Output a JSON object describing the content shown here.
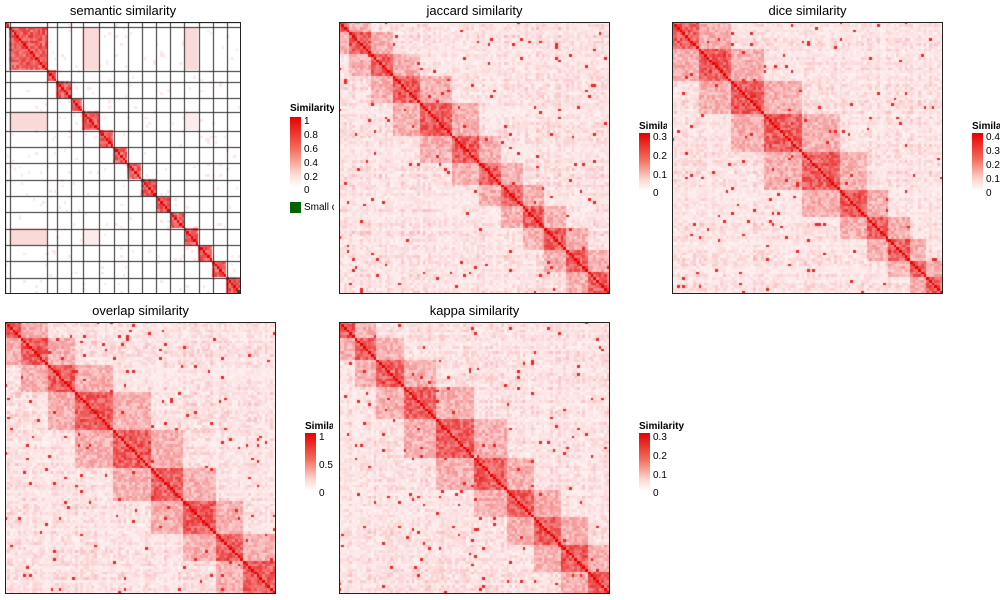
{
  "colors": {
    "low": "#ffffff",
    "high": "#e60000",
    "grid": "#2b2b2b",
    "small_block": "#006400"
  },
  "chart_data": [
    {
      "type": "heatmap",
      "title": "semantic similarity",
      "legend": {
        "title": "Similarity",
        "ticks": [
          "1",
          "0.8",
          "0.6",
          "0.4",
          "0.2",
          "0"
        ],
        "min": 0,
        "max": 1
      },
      "extra_legend_label": "Small clusters",
      "diagonal_blocks": [
        [
          0,
          2
        ],
        [
          2,
          18
        ],
        [
          18,
          22
        ],
        [
          22,
          28
        ],
        [
          28,
          33
        ],
        [
          33,
          40
        ],
        [
          40,
          46
        ],
        [
          46,
          52
        ],
        [
          52,
          58
        ],
        [
          58,
          64
        ],
        [
          64,
          70
        ],
        [
          70,
          76
        ],
        [
          76,
          82
        ],
        [
          82,
          88
        ],
        [
          88,
          94
        ],
        [
          94,
          100
        ]
      ]
    },
    {
      "type": "heatmap",
      "title": "jaccard similarity",
      "legend": {
        "title": "Similarity",
        "ticks": [
          "0.3",
          "0.2",
          "0.1",
          "0"
        ],
        "min": 0,
        "max": 0.3
      },
      "diagonal_blocks": [
        [
          0,
          4
        ],
        [
          4,
          12
        ],
        [
          12,
          20
        ],
        [
          20,
          30
        ],
        [
          30,
          42
        ],
        [
          42,
          52
        ],
        [
          52,
          60
        ],
        [
          60,
          68
        ],
        [
          68,
          76
        ],
        [
          76,
          84
        ],
        [
          84,
          92
        ],
        [
          92,
          100
        ]
      ]
    },
    {
      "type": "heatmap",
      "title": "dice similarity",
      "legend": {
        "title": "Similarity",
        "ticks": [
          "0.4",
          "0.3",
          "0.2",
          "0.1",
          "0"
        ],
        "min": 0,
        "max": 0.4
      },
      "diagonal_blocks": [
        [
          0,
          10
        ],
        [
          10,
          22
        ],
        [
          22,
          34
        ],
        [
          34,
          48
        ],
        [
          48,
          62
        ],
        [
          62,
          72
        ],
        [
          72,
          80
        ],
        [
          80,
          88
        ],
        [
          88,
          94
        ],
        [
          94,
          100
        ]
      ]
    },
    {
      "type": "heatmap",
      "title": "overlap similarity",
      "legend": {
        "title": "Similarity",
        "ticks": [
          "1",
          "0.5",
          "0"
        ],
        "min": 0,
        "max": 1
      },
      "diagonal_blocks": [
        [
          0,
          6
        ],
        [
          6,
          16
        ],
        [
          16,
          26
        ],
        [
          26,
          40
        ],
        [
          40,
          54
        ],
        [
          54,
          66
        ],
        [
          66,
          78
        ],
        [
          78,
          88
        ],
        [
          88,
          100
        ]
      ]
    },
    {
      "type": "heatmap",
      "title": "kappa similarity",
      "legend": {
        "title": "Similarity",
        "ticks": [
          "0.3",
          "0.2",
          "0.1",
          "0"
        ],
        "min": 0,
        "max": 0.3
      },
      "diagonal_blocks": [
        [
          0,
          6
        ],
        [
          6,
          14
        ],
        [
          14,
          24
        ],
        [
          24,
          36
        ],
        [
          36,
          50
        ],
        [
          50,
          62
        ],
        [
          62,
          72
        ],
        [
          72,
          82
        ],
        [
          82,
          92
        ],
        [
          92,
          100
        ]
      ]
    }
  ]
}
